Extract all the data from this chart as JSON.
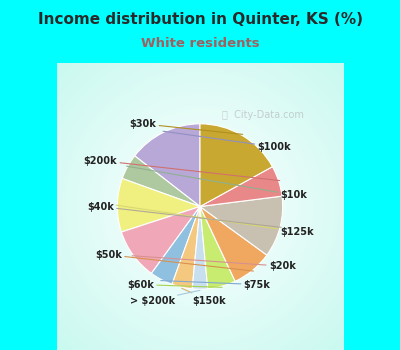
{
  "title": "Income distribution in Quinter, KS (%)",
  "subtitle": "White residents",
  "title_color": "#2a2a2a",
  "subtitle_color": "#a06060",
  "background_color": "#00FFFF",
  "labels": [
    "$100k",
    "$10k",
    "$125k",
    "$20k",
    "$75k",
    "$150k",
    "> $200k",
    "$60k",
    "$50k",
    "$40k",
    "$200k",
    "$30k"
  ],
  "values": [
    14.5,
    5.0,
    10.5,
    10.0,
    4.5,
    4.0,
    3.0,
    5.5,
    8.0,
    12.0,
    6.0,
    17.0
  ],
  "colors": [
    "#b8a8d8",
    "#aec8a0",
    "#f0f080",
    "#f0a8b8",
    "#90c0e0",
    "#f5c880",
    "#c8dff0",
    "#c8ec70",
    "#f0a860",
    "#c8c0b0",
    "#e88888",
    "#c8a830"
  ],
  "watermark": "City-Data.com",
  "label_lines_color": [
    "#9090c0",
    "#90b090",
    "#d8d870",
    "#d89090",
    "#80a8d0",
    "#d8b070",
    "#a8c8e0",
    "#a8d450",
    "#d89050",
    "#b0a898",
    "#d07070",
    "#b09020"
  ]
}
